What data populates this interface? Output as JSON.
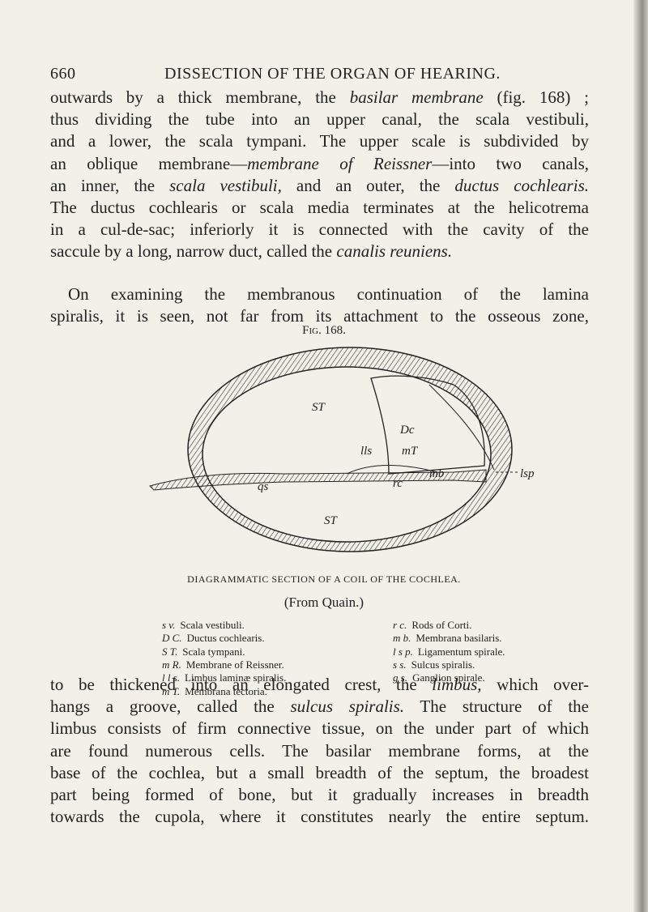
{
  "header": {
    "page_number": "660",
    "title": "DISSECTION OF THE ORGAN OF HEARING."
  },
  "paragraphs": [
    {
      "lines": [
        [
          "outwards by a thick membrane, the ",
          {
            "text": "basilar membrane",
            "italic": true
          },
          " (fig. 168) ;"
        ],
        [
          "thus dividing the tube into an upper canal, the scala vestibuli,"
        ],
        [
          "and a lower, the scala tympani.  The upper scale is subdivided by"
        ],
        [
          "an oblique membrane—",
          {
            "text": "membrane of Reissner",
            "italic": true
          },
          "—into two canals,"
        ],
        [
          "an inner, the ",
          {
            "text": "scala vestibuli,",
            "italic": true
          },
          " and an outer, the ",
          {
            "text": "ductus cochlearis.",
            "italic": true
          }
        ],
        [
          "The ductus cochlearis or scala media terminates at the helicotrema"
        ],
        [
          "in a cul-de-sac; inferiorly it is connected with the cavity of the"
        ],
        [
          "saccule by a long, narrow duct, called the ",
          {
            "text": "canalis reuniens.",
            "italic": true
          }
        ]
      ]
    },
    {
      "lines": [
        [
          "On examining the membranous continuation of the lamina"
        ],
        [
          "spiralis, it is seen, not far from its attachment to the osseous zone,"
        ]
      ]
    },
    {
      "lines": [
        [
          "to be thickened into an elongated crest, the ",
          {
            "text": "limbus,",
            "italic": true
          },
          " which over-"
        ],
        [
          "hangs a groove, called the ",
          {
            "text": "sulcus spiralis.",
            "italic": true
          },
          " The structure of the"
        ],
        [
          "limbus consists of firm connective tissue, on the under part of which"
        ],
        [
          "are found numerous cells.  The basilar membrane forms, at the"
        ],
        [
          "base of the cochlea, but a small breadth of the septum, the broadest"
        ],
        [
          "part being formed of bone, but it gradually increases in breadth"
        ],
        [
          "towards the cupola, where it constitutes nearly the entire septum."
        ]
      ]
    }
  ],
  "figure": {
    "number": "Fig. 168.",
    "labels": [
      "ST",
      "Dc",
      "lls",
      "mT",
      "mb",
      "rc",
      "qs",
      "ST",
      "lsp"
    ],
    "caption": "DIAGRAMMATIC SECTION OF A COIL OF THE COCHLEA.",
    "source": "(From Quain.)",
    "legend_left": [
      {
        "abbr": "s v.",
        "text": "Scala vestibuli."
      },
      {
        "abbr": "D C.",
        "text": "Ductus cochlearis."
      },
      {
        "abbr": "S T.",
        "text": "Scala tympani."
      },
      {
        "abbr": "m R.",
        "text": "Membrane of Reissner."
      },
      {
        "abbr": "l l s.",
        "text": "Limbus laminæ spiralis."
      },
      {
        "abbr": "m T.",
        "text": "Membrana tectoria."
      }
    ],
    "legend_right": [
      {
        "abbr": "r c.",
        "text": "Rods of Corti."
      },
      {
        "abbr": "m b.",
        "text": "Membrana basilaris."
      },
      {
        "abbr": "l s p.",
        "text": "Ligamentum spirale."
      },
      {
        "abbr": "s s.",
        "text": "Sulcus spiralis."
      },
      {
        "abbr": "g s.",
        "text": "Ganglion spirale."
      }
    ]
  }
}
